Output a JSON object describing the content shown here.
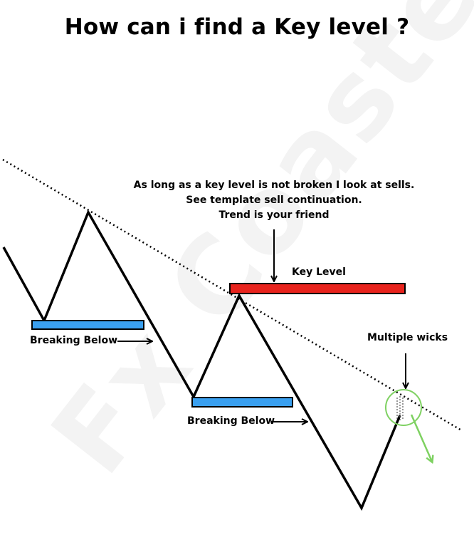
{
  "title": "How can i find a Key level ?",
  "watermark": "Fx Coaster",
  "note": {
    "line1": "As long as a key level is not broken I look at sells.",
    "line2": "See template sell continuation.",
    "line3": "Trend is your friend"
  },
  "labels": {
    "key_level": "Key Level",
    "breaking_below_1": "Breaking Below",
    "breaking_below_2": "Breaking Below",
    "multiple_wicks": "Multiple wicks"
  },
  "colors": {
    "support_zone": "#3aa0f0",
    "key_level_zone": "#e8231d",
    "wick_highlight": "#7ed161",
    "price_line": "#000000"
  }
}
